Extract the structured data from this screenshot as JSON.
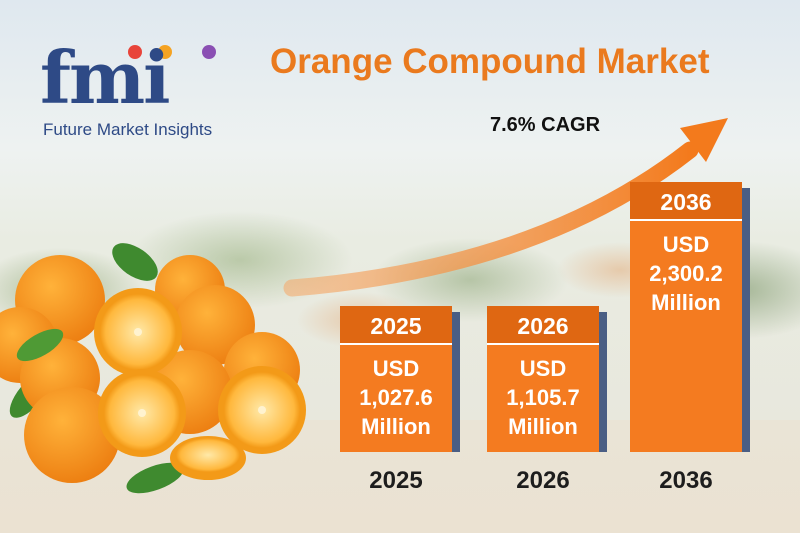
{
  "brand": {
    "logo_text": "fmi",
    "logo_subtitle": "Future Market Insights",
    "dot_colors": [
      "#e8443a",
      "#f5a323",
      "#8a4fb3"
    ],
    "primary_color": "#2e4a86"
  },
  "accent_color": "#ea7a1e",
  "chart_data": {
    "type": "bar",
    "title": "Orange Compound Market",
    "annotation": "7.6% CAGR",
    "unit": "USD Million",
    "categories": [
      "2025",
      "2026",
      "2036"
    ],
    "values": [
      1027.6,
      1105.7,
      2300.2
    ],
    "value_labels": [
      [
        "USD",
        "1,027.6",
        "Million"
      ],
      [
        "USD",
        "1,105.7",
        "Million"
      ],
      [
        "USD",
        "2,300.2",
        "Million"
      ]
    ],
    "bar_color": "#f47b20",
    "grid": false,
    "legend": "none"
  }
}
